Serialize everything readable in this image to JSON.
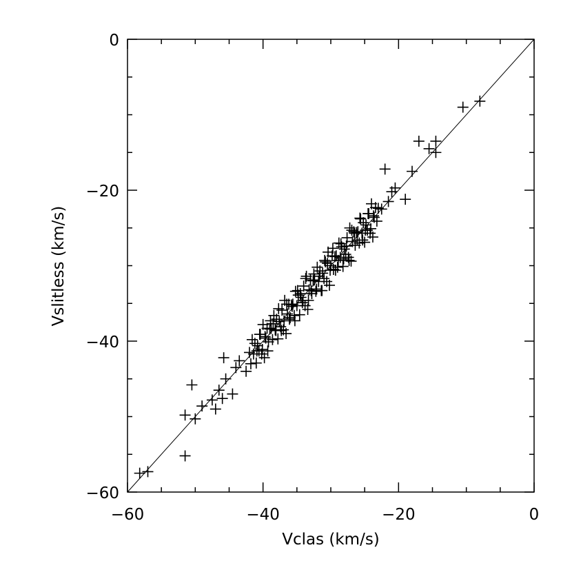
{
  "chart_data": {
    "type": "scatter",
    "title": "",
    "xlabel": "Vclas (km/s)",
    "ylabel": "Vslitless (km/s)",
    "xlim": [
      -60,
      0
    ],
    "ylim": [
      -60,
      0
    ],
    "x_ticks": [
      -60,
      -40,
      -20,
      0
    ],
    "y_ticks": [
      -60,
      -40,
      -20,
      0
    ],
    "x_tick_labels": [
      "−60",
      "−40",
      "−20",
      "0"
    ],
    "y_tick_labels": [
      "−60",
      "−40",
      "−20",
      "0"
    ],
    "minor_tick_step": 5,
    "grid": false,
    "marker": "plus",
    "color": "#000000",
    "reference_line": {
      "label": "y = x",
      "from": [
        -60,
        -60
      ],
      "to": [
        0,
        0
      ]
    },
    "points": [
      [
        -58.2,
        -57.5
      ],
      [
        -57,
        -57.3
      ],
      [
        -51.5,
        -55.2
      ],
      [
        -51.5,
        -49.8
      ],
      [
        -50.5,
        -45.8
      ],
      [
        -50,
        -50.3
      ],
      [
        -49,
        -48.6
      ],
      [
        -47.5,
        -47.8
      ],
      [
        -47,
        -49
      ],
      [
        -46.5,
        -46.5
      ],
      [
        -46,
        -47.6
      ],
      [
        -45.8,
        -42.2
      ],
      [
        -45.5,
        -45
      ],
      [
        -44.5,
        -47
      ],
      [
        -44,
        -43.5
      ],
      [
        -43.5,
        -42.6
      ],
      [
        -42.5,
        -44
      ],
      [
        -8,
        -8.2
      ],
      [
        -10.5,
        -9
      ],
      [
        -17,
        -13.5
      ],
      [
        -15.5,
        -14.5
      ],
      [
        -14.5,
        -13.5
      ],
      [
        -14.5,
        -15
      ],
      [
        -18,
        -17.5
      ],
      [
        -19,
        -21.2
      ],
      [
        -22,
        -17.2
      ],
      [
        -20.5,
        -19.7
      ],
      [
        -21,
        -20.2
      ],
      [
        -21.5,
        -21.5
      ],
      [
        -22.5,
        -22.5
      ],
      [
        -42.0,
        -41.5
      ],
      [
        -41.8,
        -43.0
      ],
      [
        -41.6,
        -39.8
      ],
      [
        -41.4,
        -41.7
      ],
      [
        -41.2,
        -40.3
      ],
      [
        -41.0,
        -42.9
      ],
      [
        -40.8,
        -40.6
      ],
      [
        -40.6,
        -41.3
      ],
      [
        -40.4,
        -39.1
      ],
      [
        -40.2,
        -41.7
      ],
      [
        -40.0,
        -37.8
      ],
      [
        -39.8,
        -42.2
      ],
      [
        -39.6,
        -39.6
      ],
      [
        -39.4,
        -38.3
      ],
      [
        -39.2,
        -40.1
      ],
      [
        -39.0,
        -38.4
      ],
      [
        -38.8,
        -38.3
      ],
      [
        -38.6,
        -39.8
      ],
      [
        -38.4,
        -36.6
      ],
      [
        -38.2,
        -38.5
      ],
      [
        -38.0,
        -37.1
      ],
      [
        -37.8,
        -39.7
      ],
      [
        -37.6,
        -37.4
      ],
      [
        -37.4,
        -38.1
      ],
      [
        -37.2,
        -35.9
      ],
      [
        -37.0,
        -38.5
      ],
      [
        -36.8,
        -34.6
      ],
      [
        -36.6,
        -39.0
      ],
      [
        -36.4,
        -36.4
      ],
      [
        -36.2,
        -35.1
      ],
      [
        -36.0,
        -36.9
      ],
      [
        -35.8,
        -35.2
      ],
      [
        -35.6,
        -35.1
      ],
      [
        -35.4,
        -36.6
      ],
      [
        -35.2,
        -33.4
      ],
      [
        -35.0,
        -35.3
      ],
      [
        -34.8,
        -33.9
      ],
      [
        -34.6,
        -36.5
      ],
      [
        -34.4,
        -34.2
      ],
      [
        -34.2,
        -34.9
      ],
      [
        -34.0,
        -32.7
      ],
      [
        -33.8,
        -35.3
      ],
      [
        -33.6,
        -31.4
      ],
      [
        -33.4,
        -35.8
      ],
      [
        -33.2,
        -33.2
      ],
      [
        -33.0,
        -31.9
      ],
      [
        -32.8,
        -33.7
      ],
      [
        -32.6,
        -32.0
      ],
      [
        -32.4,
        -31.9
      ],
      [
        -32.2,
        -33.4
      ],
      [
        -32.0,
        -30.2
      ],
      [
        -31.8,
        -32.1
      ],
      [
        -31.6,
        -30.7
      ],
      [
        -31.4,
        -33.3
      ],
      [
        -31.2,
        -31.0
      ],
      [
        -31.0,
        -31.7
      ],
      [
        -30.8,
        -29.5
      ],
      [
        -30.6,
        -32.1
      ],
      [
        -30.4,
        -28.2
      ],
      [
        -30.2,
        -32.6
      ],
      [
        -30.0,
        -30.0
      ],
      [
        -29.8,
        -28.7
      ],
      [
        -29.6,
        -30.5
      ],
      [
        -29.4,
        -28.8
      ],
      [
        -29.2,
        -28.7
      ],
      [
        -29.0,
        -30.2
      ],
      [
        -28.8,
        -27.0
      ],
      [
        -28.6,
        -28.9
      ],
      [
        -28.4,
        -27.5
      ],
      [
        -28.2,
        -30.1
      ],
      [
        -28.0,
        -27.8
      ],
      [
        -27.8,
        -28.5
      ],
      [
        -27.6,
        -26.3
      ],
      [
        -27.4,
        -28.9
      ],
      [
        -27.2,
        -25.0
      ],
      [
        -27.0,
        -29.4
      ],
      [
        -26.8,
        -26.8
      ],
      [
        -26.6,
        -25.5
      ],
      [
        -26.4,
        -27.3
      ],
      [
        -26.2,
        -25.6
      ],
      [
        -26.0,
        -25.5
      ],
      [
        -25.8,
        -27.0
      ],
      [
        -25.6,
        -23.8
      ],
      [
        -25.4,
        -25.7
      ],
      [
        -25.2,
        -24.3
      ],
      [
        -25.0,
        -26.9
      ],
      [
        -24.8,
        -24.6
      ],
      [
        -24.6,
        -25.3
      ],
      [
        -24.4,
        -23.1
      ],
      [
        -24.2,
        -25.7
      ],
      [
        -24.0,
        -21.8
      ],
      [
        -23.8,
        -26.2
      ],
      [
        -23.6,
        -23.6
      ],
      [
        -23.4,
        -22.3
      ],
      [
        -23.2,
        -24.1
      ],
      [
        -23.0,
        -22.4
      ],
      [
        -40.9,
        -41.3
      ],
      [
        -40.5,
        -39.1
      ],
      [
        -40.1,
        -41.1
      ],
      [
        -39.7,
        -39.4
      ],
      [
        -39.3,
        -41.3
      ],
      [
        -38.9,
        -37.3
      ],
      [
        -38.5,
        -37.7
      ],
      [
        -38.1,
        -38.6
      ],
      [
        -37.7,
        -35.7
      ],
      [
        -37.3,
        -38.6
      ],
      [
        -36.9,
        -37.3
      ],
      [
        -36.5,
        -35.1
      ],
      [
        -36.1,
        -37.1
      ],
      [
        -35.7,
        -35.4
      ],
      [
        -35.3,
        -37.3
      ],
      [
        -34.9,
        -33.3
      ],
      [
        -34.5,
        -33.7
      ],
      [
        -34.1,
        -34.6
      ],
      [
        -33.7,
        -31.7
      ],
      [
        -33.3,
        -34.6
      ],
      [
        -32.9,
        -33.3
      ],
      [
        -32.5,
        -31.1
      ],
      [
        -32.1,
        -33.1
      ],
      [
        -31.7,
        -31.4
      ],
      [
        -31.3,
        -33.3
      ],
      [
        -30.9,
        -29.3
      ],
      [
        -30.5,
        -29.7
      ],
      [
        -30.1,
        -30.6
      ],
      [
        -29.7,
        -27.7
      ],
      [
        -29.3,
        -30.6
      ],
      [
        -28.9,
        -29.3
      ],
      [
        -28.5,
        -27.1
      ],
      [
        -28.1,
        -29.1
      ],
      [
        -27.7,
        -27.4
      ],
      [
        -27.3,
        -29.3
      ],
      [
        -26.9,
        -25.3
      ],
      [
        -26.5,
        -25.7
      ],
      [
        -26.1,
        -26.6
      ],
      [
        -25.7,
        -23.7
      ],
      [
        -25.3,
        -26.6
      ],
      [
        -24.9,
        -25.3
      ],
      [
        -24.5,
        -23.1
      ],
      [
        -24.1,
        -25.1
      ],
      [
        -23.7,
        -23.4
      ]
    ]
  }
}
